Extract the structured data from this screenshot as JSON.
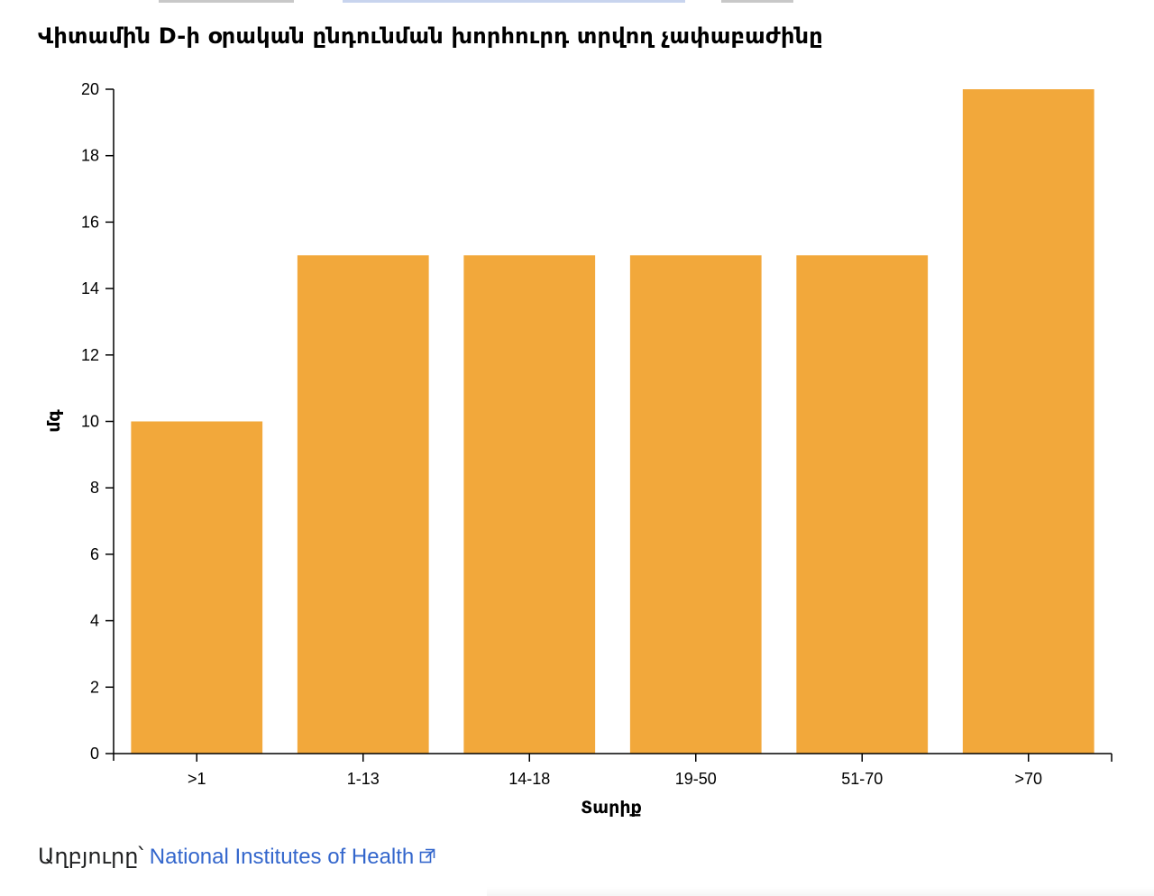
{
  "colors": {
    "bar": "#f2a83b",
    "axis": "#000000",
    "link": "#3366cc",
    "text": "#202122"
  },
  "chart_data": {
    "type": "bar",
    "title": "Վիտամին D-ի օրական ընդունման խորհուրդ տրվող չափաբաժինը",
    "xlabel": "Տարիք",
    "ylabel": "մգ",
    "categories": [
      ">1",
      "1-13",
      "14-18",
      "19-50",
      "51-70",
      ">70"
    ],
    "values": [
      10,
      15,
      15,
      15,
      15,
      20
    ],
    "ylim": [
      0,
      20
    ],
    "yticks": [
      0,
      2,
      4,
      6,
      8,
      10,
      12,
      14,
      16,
      18,
      20
    ],
    "grid": false,
    "legend": "none"
  },
  "source": {
    "prefix": "Աղբյուրը՝",
    "link_text": "National Institutes of Health",
    "icon": "external-link-icon"
  }
}
